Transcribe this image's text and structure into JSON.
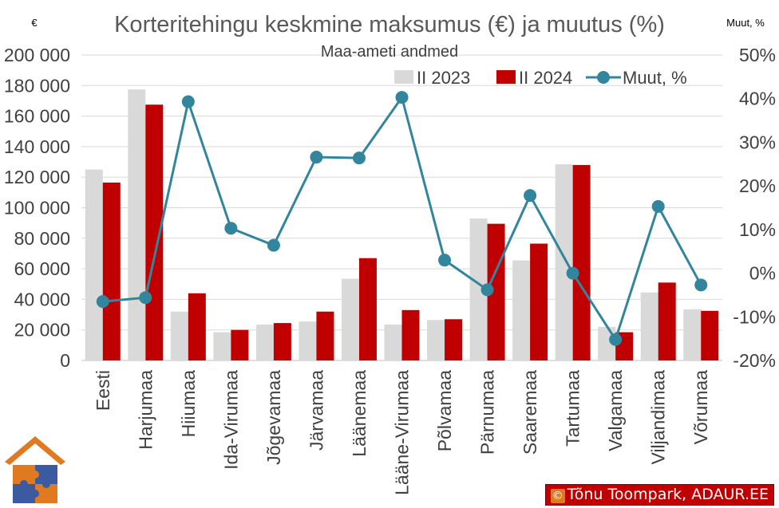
{
  "chart_data": {
    "type": "bar",
    "title": "Korteritehingu keskmine maksumus (€) ja muutus (%)",
    "subtitle": "Maa-ameti andmed",
    "ylabel_left": "€",
    "ylabel_right": "Muut, %",
    "categories": [
      "Eesti",
      "Harjumaa",
      "Hiiumaa",
      "Ida-Virumaa",
      "Jõgevamaa",
      "Järvamaa",
      "Läänemaa",
      "Lääne-Virumaa",
      "Põlvamaa",
      "Pärnumaa",
      "Saaremaa",
      "Tartumaa",
      "Valgamaa",
      "Viljandimaa",
      "Võrumaa"
    ],
    "series": [
      {
        "name": "II 2023",
        "type": "bar",
        "axis": "left",
        "color": "#d9d9d9",
        "values": [
          125000,
          177500,
          32000,
          18500,
          23500,
          25500,
          53500,
          23500,
          26500,
          93000,
          65500,
          128500,
          22000,
          44500,
          33500
        ]
      },
      {
        "name": "II 2024",
        "type": "bar",
        "axis": "left",
        "color": "#c00000",
        "values": [
          116500,
          167500,
          44000,
          20000,
          24500,
          32000,
          67000,
          33000,
          27000,
          89500,
          76500,
          128000,
          18500,
          51000,
          32500
        ]
      },
      {
        "name": "Muut, %",
        "type": "line",
        "axis": "right",
        "color": "#31859c",
        "values": [
          -6.5,
          -5.6,
          39.3,
          10.3,
          6.4,
          26.6,
          26.4,
          40.3,
          3.0,
          -3.8,
          17.8,
          0.0,
          -15.2,
          15.3,
          -2.7
        ]
      }
    ],
    "ylim_left": [
      0,
      200000
    ],
    "ylim_right": [
      -20,
      50
    ],
    "yticks_left": [
      "0",
      "20 000",
      "40 000",
      "60 000",
      "80 000",
      "100 000",
      "120 000",
      "140 000",
      "160 000",
      "180 000",
      "200 000"
    ],
    "yticks_right": [
      "-20%",
      "-10%",
      "0%",
      "10%",
      "20%",
      "30%",
      "40%",
      "50%"
    ],
    "grid": true,
    "legend_position": "top-right"
  },
  "credit": {
    "symbol": "©",
    "text": "Tõnu Toompark, ADAUR.EE"
  }
}
